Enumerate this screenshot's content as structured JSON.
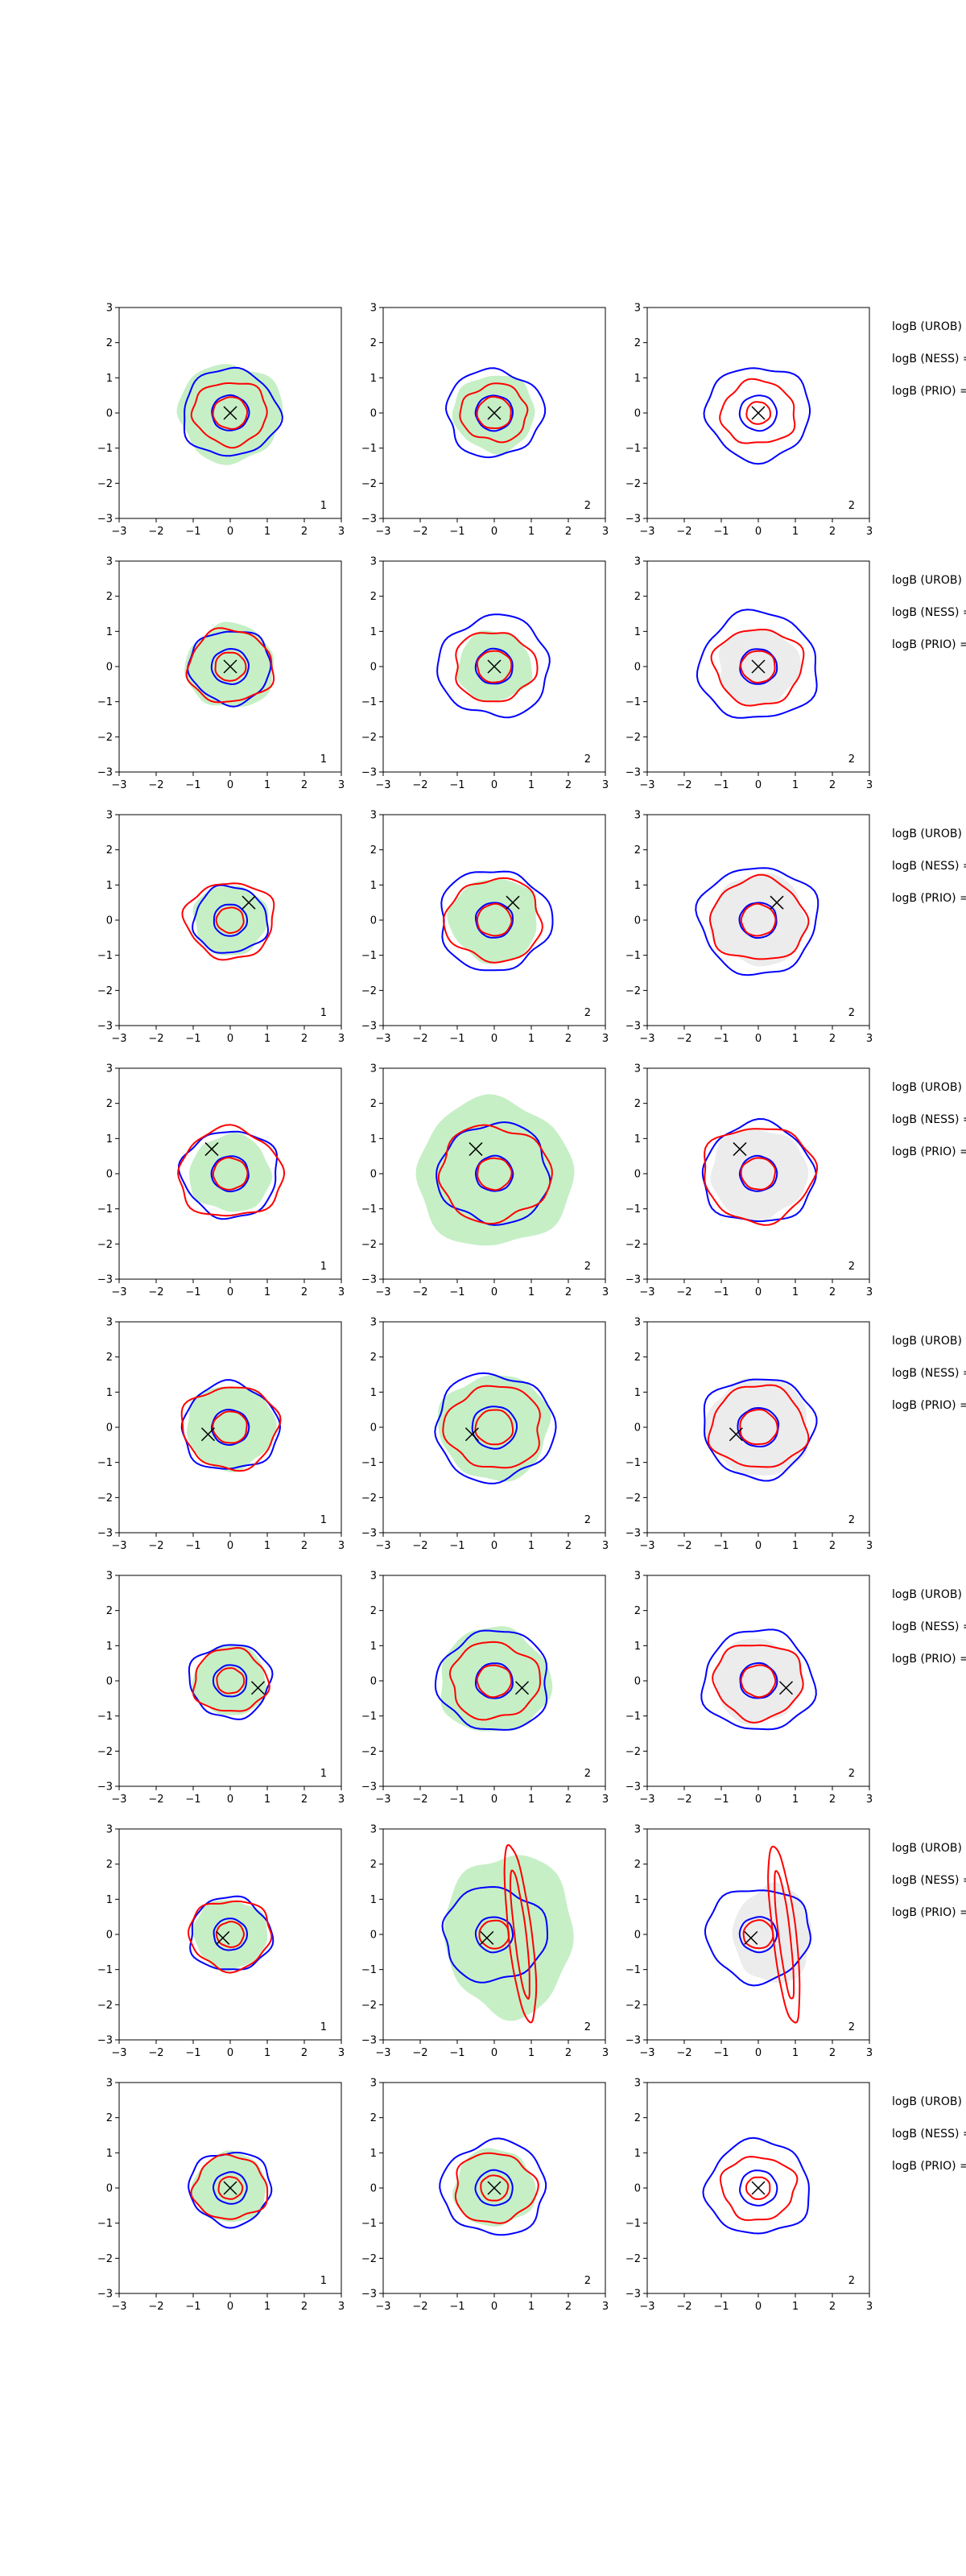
{
  "chart_data": {
    "type": "contour",
    "layout": {
      "rows": 8,
      "cols": 3
    },
    "axes": {
      "xlim": [
        -3,
        3
      ],
      "ylim": [
        -3,
        3
      ],
      "xticks": [
        "−3",
        "−2",
        "−1",
        "0",
        "1",
        "2",
        "3"
      ],
      "yticks": [
        "3",
        "2",
        "1",
        "0",
        "−1",
        "−2",
        "−3"
      ]
    },
    "colors": {
      "fill_green": "#c6efc6",
      "fill_grey": "#ececec",
      "outer_blue": "#0000ff",
      "red": "#ff0000",
      "marker": "#000000"
    },
    "rows": [
      {
        "marker": [
          0,
          0
        ],
        "panels": [
          {
            "label": "1",
            "fill": "green",
            "fill_r": 1.4,
            "blue": [
              1.3,
              0.5
            ],
            "red": [
              1.0,
              0.5
            ],
            "stretch": 1.0
          },
          {
            "label": "2",
            "fill": "green",
            "fill_r": 1.1,
            "blue": [
              1.3,
              0.5
            ],
            "red": [
              0.9,
              0.5
            ],
            "stretch": 1.0
          },
          {
            "label": "2",
            "fill": "none",
            "fill_r": 0,
            "blue": [
              1.4,
              0.5
            ],
            "red": [
              1.0,
              0.35
            ],
            "stretch": 1.0
          }
        ]
      },
      {
        "marker": [
          0,
          0
        ],
        "panels": [
          {
            "label": "1",
            "fill": "green",
            "fill_r": 1.2,
            "blue": [
              1.1,
              0.5
            ],
            "red": [
              1.15,
              0.45
            ],
            "stretch": 1.0
          },
          {
            "label": "2",
            "fill": "green",
            "fill_r": 1.0,
            "blue": [
              1.5,
              0.5
            ],
            "red": [
              1.1,
              0.5
            ],
            "stretch": 1.0
          },
          {
            "label": "2",
            "fill": "grey",
            "fill_r": 1.1,
            "blue": [
              1.6,
              0.5
            ],
            "red": [
              1.2,
              0.5
            ],
            "stretch": 1.0
          }
        ]
      },
      {
        "marker": [
          0.5,
          0.5
        ],
        "panels": [
          {
            "label": "1",
            "fill": "green",
            "fill_r": 1.0,
            "blue": [
              1.0,
              0.45
            ],
            "red": [
              1.2,
              0.4
            ],
            "stretch": 1.0
          },
          {
            "label": "2",
            "fill": "green",
            "fill_r": 1.2,
            "blue": [
              1.5,
              0.5
            ],
            "red": [
              1.3,
              0.5
            ],
            "stretch": 1.0
          },
          {
            "label": "2",
            "fill": "grey",
            "fill_r": 1.3,
            "blue": [
              1.6,
              0.5
            ],
            "red": [
              1.3,
              0.5
            ],
            "stretch": 1.0
          }
        ]
      },
      {
        "marker": [
          -0.5,
          0.7
        ],
        "panels": [
          {
            "label": "1",
            "fill": "green",
            "fill_r": 1.1,
            "blue": [
              1.3,
              0.5
            ],
            "red": [
              1.4,
              0.5
            ],
            "stretch": 1.0
          },
          {
            "label": "2",
            "fill": "green",
            "fill_r": 2.1,
            "blue": [
              1.5,
              0.5
            ],
            "red": [
              1.5,
              0.5
            ],
            "stretch": 1.0
          },
          {
            "label": "2",
            "fill": "grey",
            "fill_r": 1.3,
            "blue": [
              1.5,
              0.5
            ],
            "red": [
              1.5,
              0.5
            ],
            "stretch": 1.0
          }
        ]
      },
      {
        "marker": [
          -0.6,
          -0.2
        ],
        "panels": [
          {
            "label": "1",
            "fill": "green",
            "fill_r": 1.2,
            "blue": [
              1.3,
              0.5
            ],
            "red": [
              1.3,
              0.5
            ],
            "stretch": 1.0
          },
          {
            "label": "2",
            "fill": "green",
            "fill_r": 1.5,
            "blue": [
              1.6,
              0.6
            ],
            "red": [
              1.3,
              0.55
            ],
            "stretch": 1.0
          },
          {
            "label": "2",
            "fill": "grey",
            "fill_r": 1.4,
            "blue": [
              1.5,
              0.55
            ],
            "red": [
              1.3,
              0.55
            ],
            "stretch": 1.0
          }
        ]
      },
      {
        "marker": [
          0.75,
          -0.2
        ],
        "panels": [
          {
            "label": "1",
            "fill": "green",
            "fill_r": 1.0,
            "blue": [
              1.1,
              0.45
            ],
            "red": [
              1.0,
              0.4
            ],
            "stretch": 1.0
          },
          {
            "label": "2",
            "fill": "green",
            "fill_r": 1.5,
            "blue": [
              1.5,
              0.5
            ],
            "red": [
              1.2,
              0.5
            ],
            "stretch": 1.0
          },
          {
            "label": "2",
            "fill": "grey",
            "fill_r": 1.2,
            "blue": [
              1.5,
              0.5
            ],
            "red": [
              1.2,
              0.5
            ],
            "stretch": 1.0
          }
        ]
      },
      {
        "marker": [
          -0.2,
          -0.1
        ],
        "panels": [
          {
            "label": "1",
            "fill": "green",
            "fill_r": 1.0,
            "blue": [
              1.1,
              0.45
            ],
            "red": [
              1.1,
              0.4
            ],
            "stretch": 1.0
          },
          {
            "label": "2",
            "fill": "green",
            "fill_r": 2.3,
            "blue": [
              1.4,
              0.5
            ],
            "red": [
              0.9,
              0.4
            ],
            "stretch": 2.3
          },
          {
            "label": "2",
            "fill": "grey",
            "fill_r": 1.4,
            "blue": [
              1.4,
              0.5
            ],
            "red": [
              0.9,
              0.4
            ],
            "stretch": 2.3
          }
        ]
      },
      {
        "marker": [
          0,
          0
        ],
        "panels": [
          {
            "label": "1",
            "fill": "green",
            "fill_r": 1.0,
            "blue": [
              1.1,
              0.45
            ],
            "red": [
              1.0,
              0.35
            ],
            "stretch": 1.0
          },
          {
            "label": "2",
            "fill": "green",
            "fill_r": 1.1,
            "blue": [
              1.4,
              0.5
            ],
            "red": [
              1.1,
              0.4
            ],
            "stretch": 1.0
          },
          {
            "label": "2",
            "fill": "none",
            "fill_r": 0,
            "blue": [
              1.4,
              0.5
            ],
            "red": [
              1.0,
              0.35
            ],
            "stretch": 1.0
          }
        ]
      }
    ],
    "side_text": [
      "logB (UROB) =",
      "logB (NESS) =",
      "logB (PRIO) ="
    ]
  }
}
